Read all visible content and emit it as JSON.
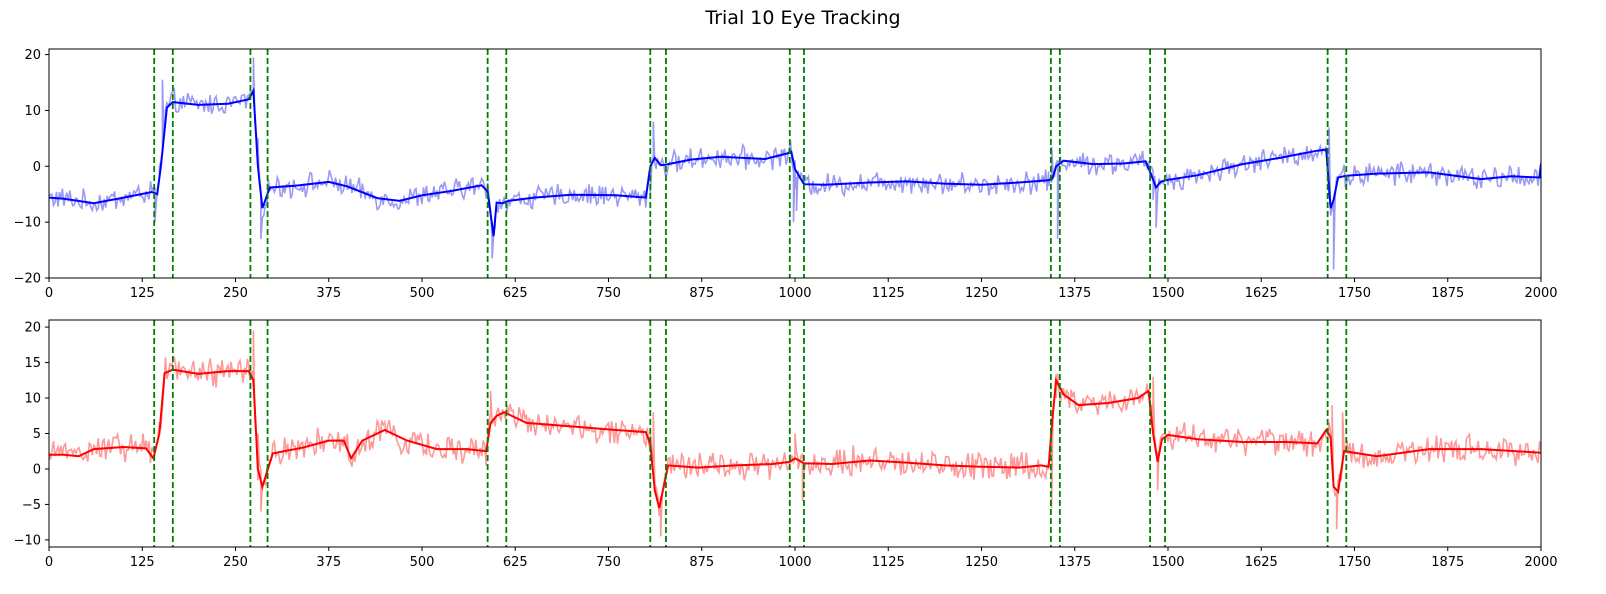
{
  "figure": {
    "title": "Trial 10 Eye Tracking"
  },
  "chart_data": [
    {
      "type": "line",
      "title": "",
      "xlabel": "",
      "ylabel": "",
      "xlim": [
        0,
        2000
      ],
      "ylim": [
        -20,
        21
      ],
      "xticks": [
        0,
        125,
        250,
        375,
        500,
        625,
        750,
        875,
        1000,
        1125,
        1250,
        1375,
        1500,
        1625,
        1750,
        1875,
        2000
      ],
      "yticks": [
        -20,
        -10,
        0,
        10,
        20
      ],
      "grid": false,
      "raw_color": "#9a9af5",
      "smooth_color": "#0000ff",
      "event_color": "#008000",
      "event_lines_x": [
        141,
        166,
        270,
        293,
        588,
        613,
        806,
        827,
        993,
        1012,
        1343,
        1355,
        1476,
        1496,
        1714,
        1739
      ],
      "smooth_series": {
        "x": [
          0,
          20,
          60,
          100,
          138,
          145,
          150,
          158,
          166,
          200,
          240,
          268,
          274,
          280,
          286,
          296,
          330,
          375,
          400,
          440,
          470,
          500,
          540,
          580,
          588,
          596,
          600,
          608,
          616,
          650,
          700,
          760,
          800,
          806,
          812,
          820,
          827,
          860,
          900,
          960,
          990,
          995,
          1000,
          1012,
          1040,
          1100,
          1150,
          1200,
          1250,
          1300,
          1340,
          1345,
          1350,
          1360,
          1400,
          1440,
          1470,
          1476,
          1484,
          1490,
          1496,
          1540,
          1600,
          1650,
          1700,
          1712,
          1718,
          1722,
          1728,
          1739,
          1780,
          1850,
          1920,
          1960,
          1998,
          2000
        ],
        "y": [
          -5.6,
          -5.8,
          -6.6,
          -5.6,
          -4.6,
          -5.0,
          0,
          10.5,
          11.5,
          11.0,
          11.2,
          12.0,
          13.5,
          0,
          -7.5,
          -3.8,
          -3.5,
          -2.8,
          -3.6,
          -5.7,
          -6.2,
          -5.2,
          -4.4,
          -3.4,
          -4.5,
          -12.5,
          -6.5,
          -6.6,
          -6.2,
          -5.6,
          -5.1,
          -5.2,
          -5.6,
          0,
          1.5,
          0.2,
          0.3,
          1.2,
          1.7,
          1.3,
          2.3,
          2.6,
          -0.5,
          -3.2,
          -3.3,
          -2.9,
          -2.7,
          -3.1,
          -3.3,
          -2.9,
          -2.5,
          -2.2,
          0,
          1.0,
          0.4,
          0.5,
          0.9,
          -1.0,
          -3.8,
          -2.8,
          -2.5,
          -1.6,
          0.4,
          1.5,
          2.8,
          3.0,
          -7.5,
          -6.0,
          -2.0,
          -1.7,
          -1.3,
          -1.1,
          -2.3,
          -1.8,
          -2.0,
          0.4
        ]
      },
      "raw_series": {
        "x": [
          140,
          142,
          148,
          152,
          156,
          268,
          274,
          280,
          284,
          588,
          594,
          598,
          600,
          806,
          810,
          814,
          992,
          998,
          1000,
          1002,
          1340,
          1344,
          1352,
          1355,
          1476,
          1480,
          1484,
          1712,
          1716,
          1722,
          1726
        ],
        "y": [
          -4.5,
          -10.0,
          0,
          15.5,
          10.0,
          12.0,
          19.5,
          5.0,
          -13.0,
          -3.0,
          -16.5,
          -10.0,
          -7.0,
          -5.0,
          8.0,
          0,
          2.5,
          -10.0,
          -4.0,
          -8.0,
          -3.5,
          3.5,
          -13.0,
          1.0,
          0,
          -6.0,
          -11.0,
          3.0,
          7.0,
          -18.5,
          -2.0
        ]
      }
    },
    {
      "type": "line",
      "title": "",
      "xlabel": "",
      "ylabel": "",
      "xlim": [
        0,
        2000
      ],
      "ylim": [
        -11,
        21
      ],
      "xticks": [
        0,
        125,
        250,
        375,
        500,
        625,
        750,
        875,
        1000,
        1125,
        1250,
        1375,
        1500,
        1625,
        1750,
        1875,
        2000
      ],
      "yticks": [
        -10,
        -5,
        0,
        5,
        10,
        15,
        20
      ],
      "grid": false,
      "raw_color": "#ff9999",
      "smooth_color": "#ff0000",
      "event_color": "#008000",
      "event_lines_x": [
        141,
        166,
        270,
        293,
        588,
        613,
        806,
        827,
        993,
        1012,
        1343,
        1355,
        1476,
        1496,
        1714,
        1739
      ],
      "smooth_series": {
        "x": [
          0,
          20,
          40,
          60,
          100,
          130,
          140,
          148,
          155,
          166,
          200,
          240,
          268,
          274,
          280,
          286,
          300,
          340,
          375,
          395,
          405,
          420,
          450,
          480,
          520,
          560,
          586,
          592,
          600,
          610,
          640,
          700,
          760,
          800,
          806,
          812,
          818,
          824,
          830,
          870,
          920,
          970,
          993,
          1000,
          1012,
          1050,
          1100,
          1150,
          1200,
          1250,
          1300,
          1330,
          1340,
          1345,
          1350,
          1360,
          1380,
          1420,
          1460,
          1474,
          1480,
          1486,
          1492,
          1500,
          1540,
          1600,
          1660,
          1700,
          1712,
          1718,
          1722,
          1728,
          1736,
          1780,
          1850,
          1920,
          2000
        ],
        "y": [
          2.0,
          2.0,
          1.8,
          2.8,
          3.1,
          2.9,
          1.5,
          5.0,
          13.5,
          14.0,
          13.4,
          13.8,
          13.8,
          12.5,
          0,
          -2.5,
          2.2,
          3.0,
          4.0,
          4.0,
          1.5,
          4.0,
          5.5,
          4.0,
          2.8,
          2.8,
          2.5,
          6.5,
          7.5,
          8.0,
          6.5,
          6.0,
          5.5,
          5.2,
          3.5,
          -3.0,
          -5.5,
          -2.5,
          0.5,
          0.2,
          0.5,
          0.7,
          1.0,
          1.5,
          0.8,
          0.7,
          1.2,
          0.9,
          0.5,
          0.3,
          0.2,
          0.5,
          0.3,
          7.0,
          12.5,
          10.5,
          9.0,
          9.3,
          10.0,
          11.0,
          5.0,
          1.0,
          4.2,
          4.8,
          4.2,
          3.8,
          3.8,
          3.6,
          5.5,
          4.5,
          -2.5,
          -3.2,
          2.5,
          1.8,
          2.8,
          2.8,
          2.3
        ]
      },
      "raw_series": {
        "x": [
          268,
          274,
          280,
          284,
          586,
          592,
          598,
          806,
          810,
          814,
          820,
          994,
          1000,
          1004,
          1010,
          1340,
          1344,
          1350,
          1474,
          1480,
          1486,
          1714,
          1720,
          1726,
          1734
        ],
        "y": [
          13.5,
          19.5,
          5.0,
          -6.0,
          2.0,
          11.0,
          6.0,
          5.0,
          8.0,
          -2.5,
          -9.5,
          1.0,
          5.0,
          0,
          -4.5,
          0.5,
          -5.5,
          10.0,
          11.0,
          13.0,
          -3.0,
          4.0,
          9.0,
          -8.5,
          8.0
        ]
      }
    }
  ]
}
